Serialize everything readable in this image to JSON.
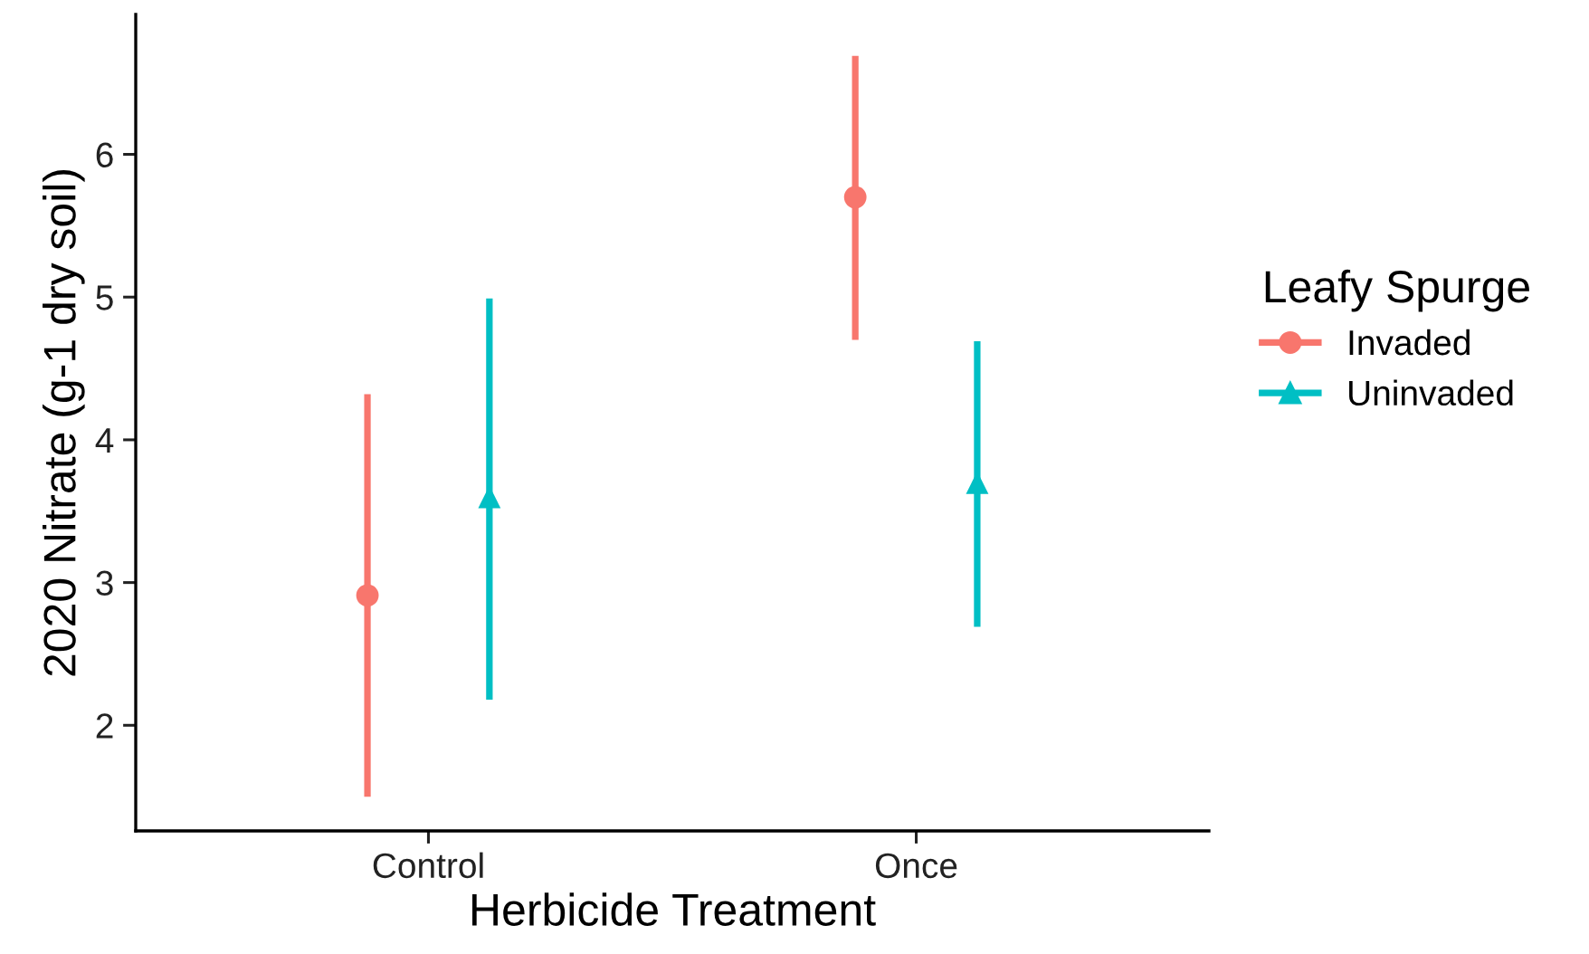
{
  "chart_data": {
    "type": "scatter",
    "xlabel": "Herbicide Treatment",
    "ylabel": "2020 Nitrate (g-1 dry soil)",
    "legend_title": "Leafy Spurge",
    "legend": "right",
    "grid": false,
    "categories": [
      "Control",
      "Once"
    ],
    "series": [
      {
        "name": "Invaded",
        "color": "#f8766d",
        "marker": "circle",
        "values": [
          2.91,
          5.7
        ],
        "errors": [
          [
            1.5,
            4.32
          ],
          [
            4.7,
            6.69
          ]
        ]
      },
      {
        "name": "Uninvaded",
        "color": "#00bfc4",
        "marker": "triangle",
        "values": [
          3.6,
          3.7
        ],
        "errors": [
          [
            2.18,
            4.99
          ],
          [
            2.69,
            4.69
          ]
        ]
      }
    ],
    "ylim": [
      1.26,
      6.98
    ],
    "yticks": [
      2,
      3,
      4,
      5,
      6
    ]
  }
}
